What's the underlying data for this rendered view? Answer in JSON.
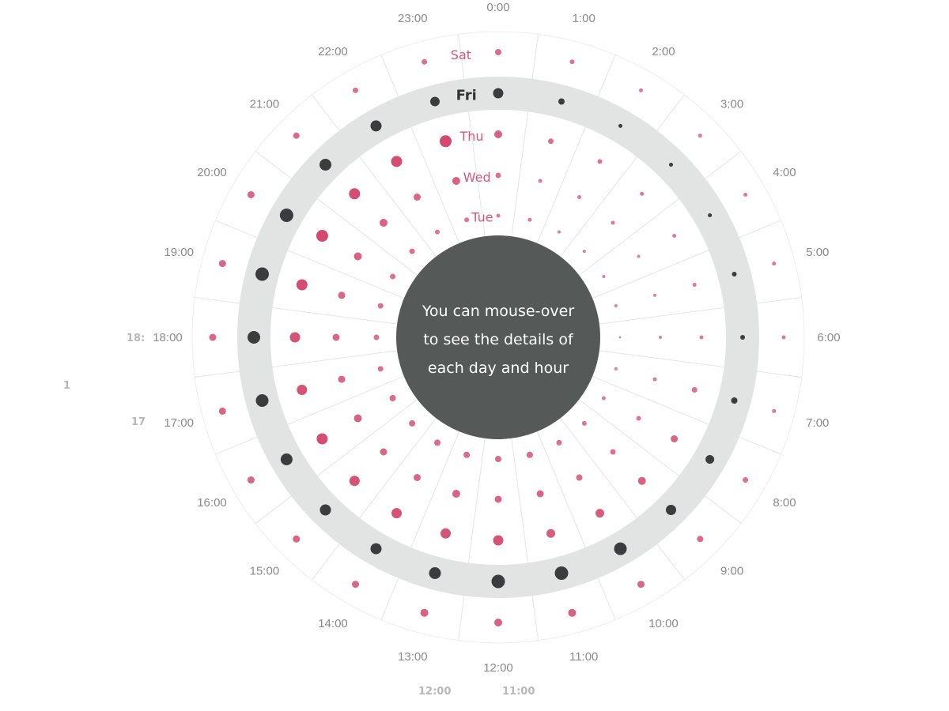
{
  "chart_data": {
    "type": "radial-dot",
    "title": "",
    "center_message": [
      "You can mouse-over",
      "to see the details of",
      "each day and hour"
    ],
    "hours": [
      "0:00",
      "1:00",
      "2:00",
      "3:00",
      "4:00",
      "5:00",
      "6:00",
      "7:00",
      "8:00",
      "9:00",
      "10:00",
      "11:00",
      "12:00",
      "13:00",
      "14:00",
      "15:00",
      "16:00",
      "17:00",
      "18:00",
      "19:00",
      "20:00",
      "21:00",
      "22:00",
      "23:00"
    ],
    "days": [
      "Tue",
      "Wed",
      "Thu",
      "Fri",
      "Sat"
    ],
    "highlighted_day": "Fri",
    "series": [
      {
        "values": [
          2.5,
          2.5,
          2,
          2,
          2,
          2,
          1.5,
          2,
          2.5,
          3,
          3.5,
          4,
          4,
          4,
          4,
          4,
          4,
          3.5,
          3.5,
          3.5,
          3.5,
          3.5,
          3,
          3
        ]
      },
      {
        "values": [
          3.5,
          2.5,
          2.5,
          2.5,
          2,
          2,
          2,
          2.5,
          3,
          3.5,
          4,
          4.5,
          4.5,
          5,
          4.5,
          4.5,
          5,
          4.5,
          4.5,
          4.5,
          5,
          5,
          4.5,
          5
        ]
      },
      {
        "values": [
          5,
          3.5,
          3,
          2.5,
          2.5,
          2.5,
          2.5,
          3.5,
          4.5,
          5,
          5.5,
          5.5,
          6.5,
          6.5,
          6.5,
          6.5,
          7,
          6.5,
          6.5,
          7,
          7.5,
          7,
          7,
          7.5
        ]
      },
      {
        "values": [
          6.5,
          4,
          2.5,
          2.5,
          2.5,
          3,
          3,
          4,
          5.5,
          6.5,
          8,
          8.5,
          8.5,
          7.5,
          7,
          7,
          7.5,
          8,
          8,
          8.5,
          8.5,
          7.5,
          7,
          6
        ]
      },
      {
        "values": [
          4,
          3,
          2.5,
          2.5,
          2.5,
          2.5,
          2.5,
          2.5,
          3.5,
          4,
          4.5,
          5,
          5,
          5,
          4.5,
          4.5,
          4.5,
          4.5,
          4.5,
          4.5,
          4.5,
          4,
          3.5,
          3.5
        ]
      }
    ],
    "colors": {
      "normal": "#cf3a64",
      "highlight": "#3a3c3e",
      "center": "#555958",
      "band": "#e2e4e4"
    }
  },
  "ghost_labels": [
    {
      "text": "18:"
    },
    {
      "text": "1"
    },
    {
      "text": "17"
    },
    {
      "text": "12:00"
    },
    {
      "text": "11:00"
    }
  ]
}
